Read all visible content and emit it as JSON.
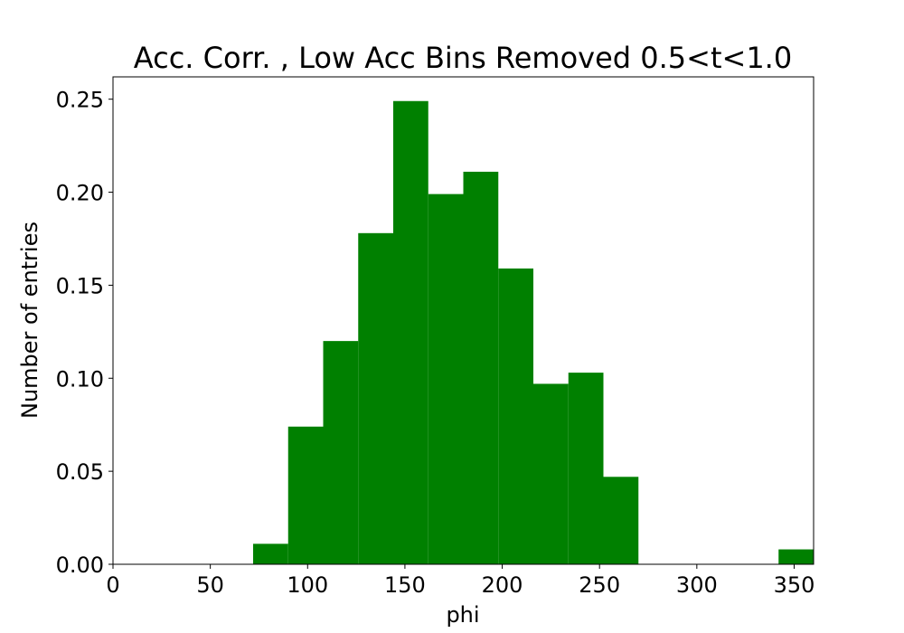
{
  "chart_data": {
    "type": "bar",
    "title": "Acc. Corr. , Low Acc Bins Removed 0.5<t<1.0",
    "xlabel": "phi",
    "ylabel": "Number of entries",
    "xlim": [
      0,
      360
    ],
    "ylim": [
      0,
      0.262
    ],
    "x_ticks": [
      "0",
      "50",
      "100",
      "150",
      "200",
      "250",
      "300",
      "350"
    ],
    "y_ticks": [
      "0.00",
      "0.05",
      "0.10",
      "0.15",
      "0.20",
      "0.25"
    ],
    "grid": false,
    "bar_color": "#008000",
    "bins": [
      {
        "x0": 72,
        "x1": 90,
        "value": 0.011
      },
      {
        "x0": 90,
        "x1": 108,
        "value": 0.074
      },
      {
        "x0": 108,
        "x1": 126,
        "value": 0.12
      },
      {
        "x0": 126,
        "x1": 144,
        "value": 0.178
      },
      {
        "x0": 144,
        "x1": 162,
        "value": 0.249
      },
      {
        "x0": 162,
        "x1": 180,
        "value": 0.199
      },
      {
        "x0": 180,
        "x1": 198,
        "value": 0.211
      },
      {
        "x0": 198,
        "x1": 216,
        "value": 0.159
      },
      {
        "x0": 216,
        "x1": 234,
        "value": 0.097
      },
      {
        "x0": 234,
        "x1": 252,
        "value": 0.103
      },
      {
        "x0": 252,
        "x1": 270,
        "value": 0.047
      },
      {
        "x0": 342,
        "x1": 360,
        "value": 0.008
      }
    ]
  }
}
